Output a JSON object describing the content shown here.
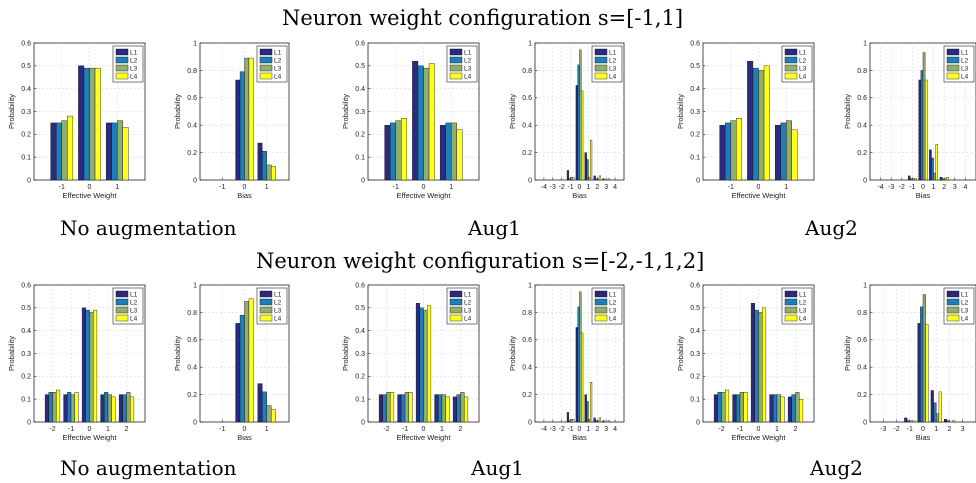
{
  "figure": {
    "rows": [
      {
        "title": "Neuron weight configuration s=[-1,1]",
        "captions": [
          "No augmentation",
          "Aug1",
          "Aug2"
        ]
      },
      {
        "title": "Neuron weight configuration s=[-2,-1,1,2]",
        "captions": [
          "No augmentation",
          "Aug1",
          "Aug2"
        ]
      }
    ],
    "series_colors": {
      "L1": "#2a2a7e",
      "L2": "#1e7fb8",
      "L3": "#93ad6a",
      "L4": "#ffff1e"
    }
  },
  "chart_data": [
    {
      "type": "bar",
      "row": 0,
      "col": 0,
      "xlabel": "Effective Weight",
      "ylabel": "Probability",
      "categories": [
        "-1",
        "0",
        "1"
      ],
      "ylim": [
        0,
        0.6
      ],
      "yticks": [
        "0",
        "0.1",
        "0.2",
        "0.3",
        "0.4",
        "0.5",
        "0.6"
      ],
      "series": [
        {
          "name": "L1",
          "values": [
            0.25,
            0.5,
            0.25
          ]
        },
        {
          "name": "L2",
          "values": [
            0.25,
            0.49,
            0.25
          ]
        },
        {
          "name": "L3",
          "values": [
            0.26,
            0.49,
            0.26
          ]
        },
        {
          "name": "L4",
          "values": [
            0.28,
            0.49,
            0.23
          ]
        }
      ]
    },
    {
      "type": "bar",
      "row": 0,
      "col": 1,
      "xlabel": "Bias",
      "ylabel": "Probability",
      "categories": [
        "-1",
        "0",
        "1"
      ],
      "ylim": [
        0,
        1
      ],
      "yticks": [
        "0",
        "0.2",
        "0.4",
        "0.6",
        "0.8",
        "1"
      ],
      "series": [
        {
          "name": "L1",
          "values": [
            0.0,
            0.73,
            0.27
          ]
        },
        {
          "name": "L2",
          "values": [
            0.0,
            0.79,
            0.21
          ]
        },
        {
          "name": "L3",
          "values": [
            0.0,
            0.89,
            0.11
          ]
        },
        {
          "name": "L4",
          "values": [
            0.0,
            0.89,
            0.1
          ]
        }
      ]
    },
    {
      "type": "bar",
      "row": 0,
      "col": 2,
      "xlabel": "Effective Weight",
      "ylabel": "Probability",
      "categories": [
        "-1",
        "0",
        "1"
      ],
      "ylim": [
        0,
        0.6
      ],
      "yticks": [
        "0",
        "0.1",
        "0.2",
        "0.3",
        "0.4",
        "0.5",
        "0.6"
      ],
      "series": [
        {
          "name": "L1",
          "values": [
            0.24,
            0.52,
            0.24
          ]
        },
        {
          "name": "L2",
          "values": [
            0.25,
            0.5,
            0.25
          ]
        },
        {
          "name": "L3",
          "values": [
            0.26,
            0.49,
            0.25
          ]
        },
        {
          "name": "L4",
          "values": [
            0.27,
            0.51,
            0.22
          ]
        }
      ]
    },
    {
      "type": "bar",
      "row": 0,
      "col": 3,
      "xlabel": "Bias",
      "ylabel": "Probability",
      "categories": [
        "-4",
        "-3",
        "-2",
        "-1",
        "0",
        "1",
        "2",
        "3",
        "4"
      ],
      "ylim": [
        0,
        1
      ],
      "yticks": [
        "0",
        "0.2",
        "0.4",
        "0.6",
        "0.8",
        "1"
      ],
      "series": [
        {
          "name": "L1",
          "values": [
            0.0,
            0.0,
            0.0,
            0.07,
            0.69,
            0.2,
            0.03,
            0.01,
            0.0
          ]
        },
        {
          "name": "L2",
          "values": [
            0.0,
            0.0,
            0.0,
            0.01,
            0.84,
            0.15,
            0.01,
            0.0,
            0.0
          ]
        },
        {
          "name": "L3",
          "values": [
            0.0,
            0.0,
            0.0,
            0.02,
            0.95,
            0.02,
            0.01,
            0.0,
            0.0
          ]
        },
        {
          "name": "L4",
          "values": [
            0.0,
            0.0,
            0.0,
            0.02,
            0.65,
            0.29,
            0.03,
            0.01,
            0.0
          ]
        }
      ]
    },
    {
      "type": "bar",
      "row": 0,
      "col": 4,
      "xlabel": "Effective Weight",
      "ylabel": "Probability",
      "categories": [
        "-1",
        "0",
        "1"
      ],
      "ylim": [
        0,
        0.6
      ],
      "yticks": [
        "0",
        "0.1",
        "0.2",
        "0.3",
        "0.4",
        "0.5",
        "0.6"
      ],
      "series": [
        {
          "name": "L1",
          "values": [
            0.24,
            0.52,
            0.24
          ]
        },
        {
          "name": "L2",
          "values": [
            0.25,
            0.49,
            0.25
          ]
        },
        {
          "name": "L3",
          "values": [
            0.26,
            0.48,
            0.26
          ]
        },
        {
          "name": "L4",
          "values": [
            0.27,
            0.5,
            0.22
          ]
        }
      ]
    },
    {
      "type": "bar",
      "row": 0,
      "col": 5,
      "xlabel": "Bias",
      "ylabel": "Probability",
      "categories": [
        "-4",
        "-3",
        "-2",
        "-1",
        "0",
        "1",
        "2",
        "3",
        "4"
      ],
      "ylim": [
        0,
        1
      ],
      "yticks": [
        "0",
        "0.2",
        "0.4",
        "0.6",
        "0.8",
        "1"
      ],
      "series": [
        {
          "name": "L1",
          "values": [
            0.0,
            0.0,
            0.0,
            0.03,
            0.73,
            0.22,
            0.02,
            0.0,
            0.0
          ]
        },
        {
          "name": "L2",
          "values": [
            0.0,
            0.0,
            0.0,
            0.01,
            0.8,
            0.16,
            0.01,
            0.0,
            0.0
          ]
        },
        {
          "name": "L3",
          "values": [
            0.0,
            0.0,
            0.0,
            0.01,
            0.93,
            0.05,
            0.01,
            0.0,
            0.0
          ]
        },
        {
          "name": "L4",
          "values": [
            0.0,
            0.0,
            0.0,
            0.01,
            0.73,
            0.26,
            0.02,
            0.0,
            0.0
          ]
        }
      ]
    },
    {
      "type": "bar",
      "row": 1,
      "col": 0,
      "xlabel": "Effective Weight",
      "ylabel": "Probability",
      "categories": [
        "-2",
        "-1",
        "0",
        "1",
        "2"
      ],
      "ylim": [
        0,
        0.6
      ],
      "yticks": [
        "0",
        "0.1",
        "0.2",
        "0.3",
        "0.4",
        "0.5",
        "0.6"
      ],
      "series": [
        {
          "name": "L1",
          "values": [
            0.12,
            0.12,
            0.5,
            0.12,
            0.12
          ]
        },
        {
          "name": "L2",
          "values": [
            0.13,
            0.13,
            0.49,
            0.13,
            0.12
          ]
        },
        {
          "name": "L3",
          "values": [
            0.13,
            0.12,
            0.48,
            0.12,
            0.13
          ]
        },
        {
          "name": "L4",
          "values": [
            0.14,
            0.13,
            0.49,
            0.11,
            0.11
          ]
        }
      ]
    },
    {
      "type": "bar",
      "row": 1,
      "col": 1,
      "xlabel": "Bias",
      "ylabel": "Probability",
      "categories": [
        "-1",
        "0",
        "1"
      ],
      "ylim": [
        0,
        1
      ],
      "yticks": [
        "0",
        "0.2",
        "0.4",
        "0.6",
        "0.8",
        "1"
      ],
      "series": [
        {
          "name": "L1",
          "values": [
            0.0,
            0.72,
            0.28
          ]
        },
        {
          "name": "L2",
          "values": [
            0.0,
            0.78,
            0.22
          ]
        },
        {
          "name": "L3",
          "values": [
            0.0,
            0.88,
            0.12
          ]
        },
        {
          "name": "L4",
          "values": [
            0.0,
            0.9,
            0.09
          ]
        }
      ]
    },
    {
      "type": "bar",
      "row": 1,
      "col": 2,
      "xlabel": "Effective Weight",
      "ylabel": "Probability",
      "categories": [
        "-2",
        "-1",
        "0",
        "1",
        "2"
      ],
      "ylim": [
        0,
        0.6
      ],
      "yticks": [
        "0",
        "0.1",
        "0.2",
        "0.3",
        "0.4",
        "0.5",
        "0.6"
      ],
      "series": [
        {
          "name": "L1",
          "values": [
            0.12,
            0.12,
            0.52,
            0.12,
            0.11
          ]
        },
        {
          "name": "L2",
          "values": [
            0.12,
            0.12,
            0.5,
            0.12,
            0.12
          ]
        },
        {
          "name": "L3",
          "values": [
            0.13,
            0.13,
            0.49,
            0.12,
            0.13
          ]
        },
        {
          "name": "L4",
          "values": [
            0.13,
            0.13,
            0.51,
            0.11,
            0.11
          ]
        }
      ]
    },
    {
      "type": "bar",
      "row": 1,
      "col": 3,
      "xlabel": "Bias",
      "ylabel": "Probability",
      "categories": [
        "-4",
        "-3",
        "-2",
        "-1",
        "0",
        "1",
        "2",
        "3",
        "4"
      ],
      "ylim": [
        0,
        1
      ],
      "yticks": [
        "0",
        "0.2",
        "0.4",
        "0.6",
        "0.8",
        "1"
      ],
      "series": [
        {
          "name": "L1",
          "values": [
            0.0,
            0.0,
            0.0,
            0.07,
            0.69,
            0.2,
            0.03,
            0.01,
            0.0
          ]
        },
        {
          "name": "L2",
          "values": [
            0.0,
            0.0,
            0.0,
            0.01,
            0.84,
            0.15,
            0.01,
            0.0,
            0.0
          ]
        },
        {
          "name": "L3",
          "values": [
            0.0,
            0.0,
            0.0,
            0.02,
            0.95,
            0.02,
            0.01,
            0.0,
            0.0
          ]
        },
        {
          "name": "L4",
          "values": [
            0.0,
            0.0,
            0.0,
            0.02,
            0.65,
            0.29,
            0.03,
            0.01,
            0.0
          ]
        }
      ]
    },
    {
      "type": "bar",
      "row": 1,
      "col": 4,
      "xlabel": "Effective Weight",
      "ylabel": "Probability",
      "categories": [
        "-2",
        "-1",
        "0",
        "1",
        "2"
      ],
      "ylim": [
        0,
        0.6
      ],
      "yticks": [
        "0",
        "0.1",
        "0.2",
        "0.3",
        "0.4",
        "0.5",
        "0.6"
      ],
      "series": [
        {
          "name": "L1",
          "values": [
            0.12,
            0.12,
            0.52,
            0.12,
            0.11
          ]
        },
        {
          "name": "L2",
          "values": [
            0.13,
            0.12,
            0.49,
            0.12,
            0.12
          ]
        },
        {
          "name": "L3",
          "values": [
            0.13,
            0.13,
            0.48,
            0.12,
            0.13
          ]
        },
        {
          "name": "L4",
          "values": [
            0.14,
            0.13,
            0.5,
            0.11,
            0.1
          ]
        }
      ]
    },
    {
      "type": "bar",
      "row": 1,
      "col": 5,
      "xlabel": "Bias",
      "ylabel": "Probability",
      "categories": [
        "-3",
        "-2",
        "-1",
        "0",
        "1",
        "2",
        "3"
      ],
      "ylim": [
        0,
        1
      ],
      "yticks": [
        "0",
        "0.2",
        "0.4",
        "0.6",
        "0.8",
        "1"
      ],
      "series": [
        {
          "name": "L1",
          "values": [
            0.0,
            0.0,
            0.03,
            0.72,
            0.23,
            0.02,
            0.0
          ]
        },
        {
          "name": "L2",
          "values": [
            0.0,
            0.0,
            0.01,
            0.84,
            0.14,
            0.01,
            0.0
          ]
        },
        {
          "name": "L3",
          "values": [
            0.0,
            0.0,
            0.01,
            0.93,
            0.06,
            0.0,
            0.0
          ]
        },
        {
          "name": "L4",
          "values": [
            0.0,
            0.0,
            0.01,
            0.71,
            0.22,
            0.01,
            0.0
          ]
        }
      ]
    }
  ]
}
